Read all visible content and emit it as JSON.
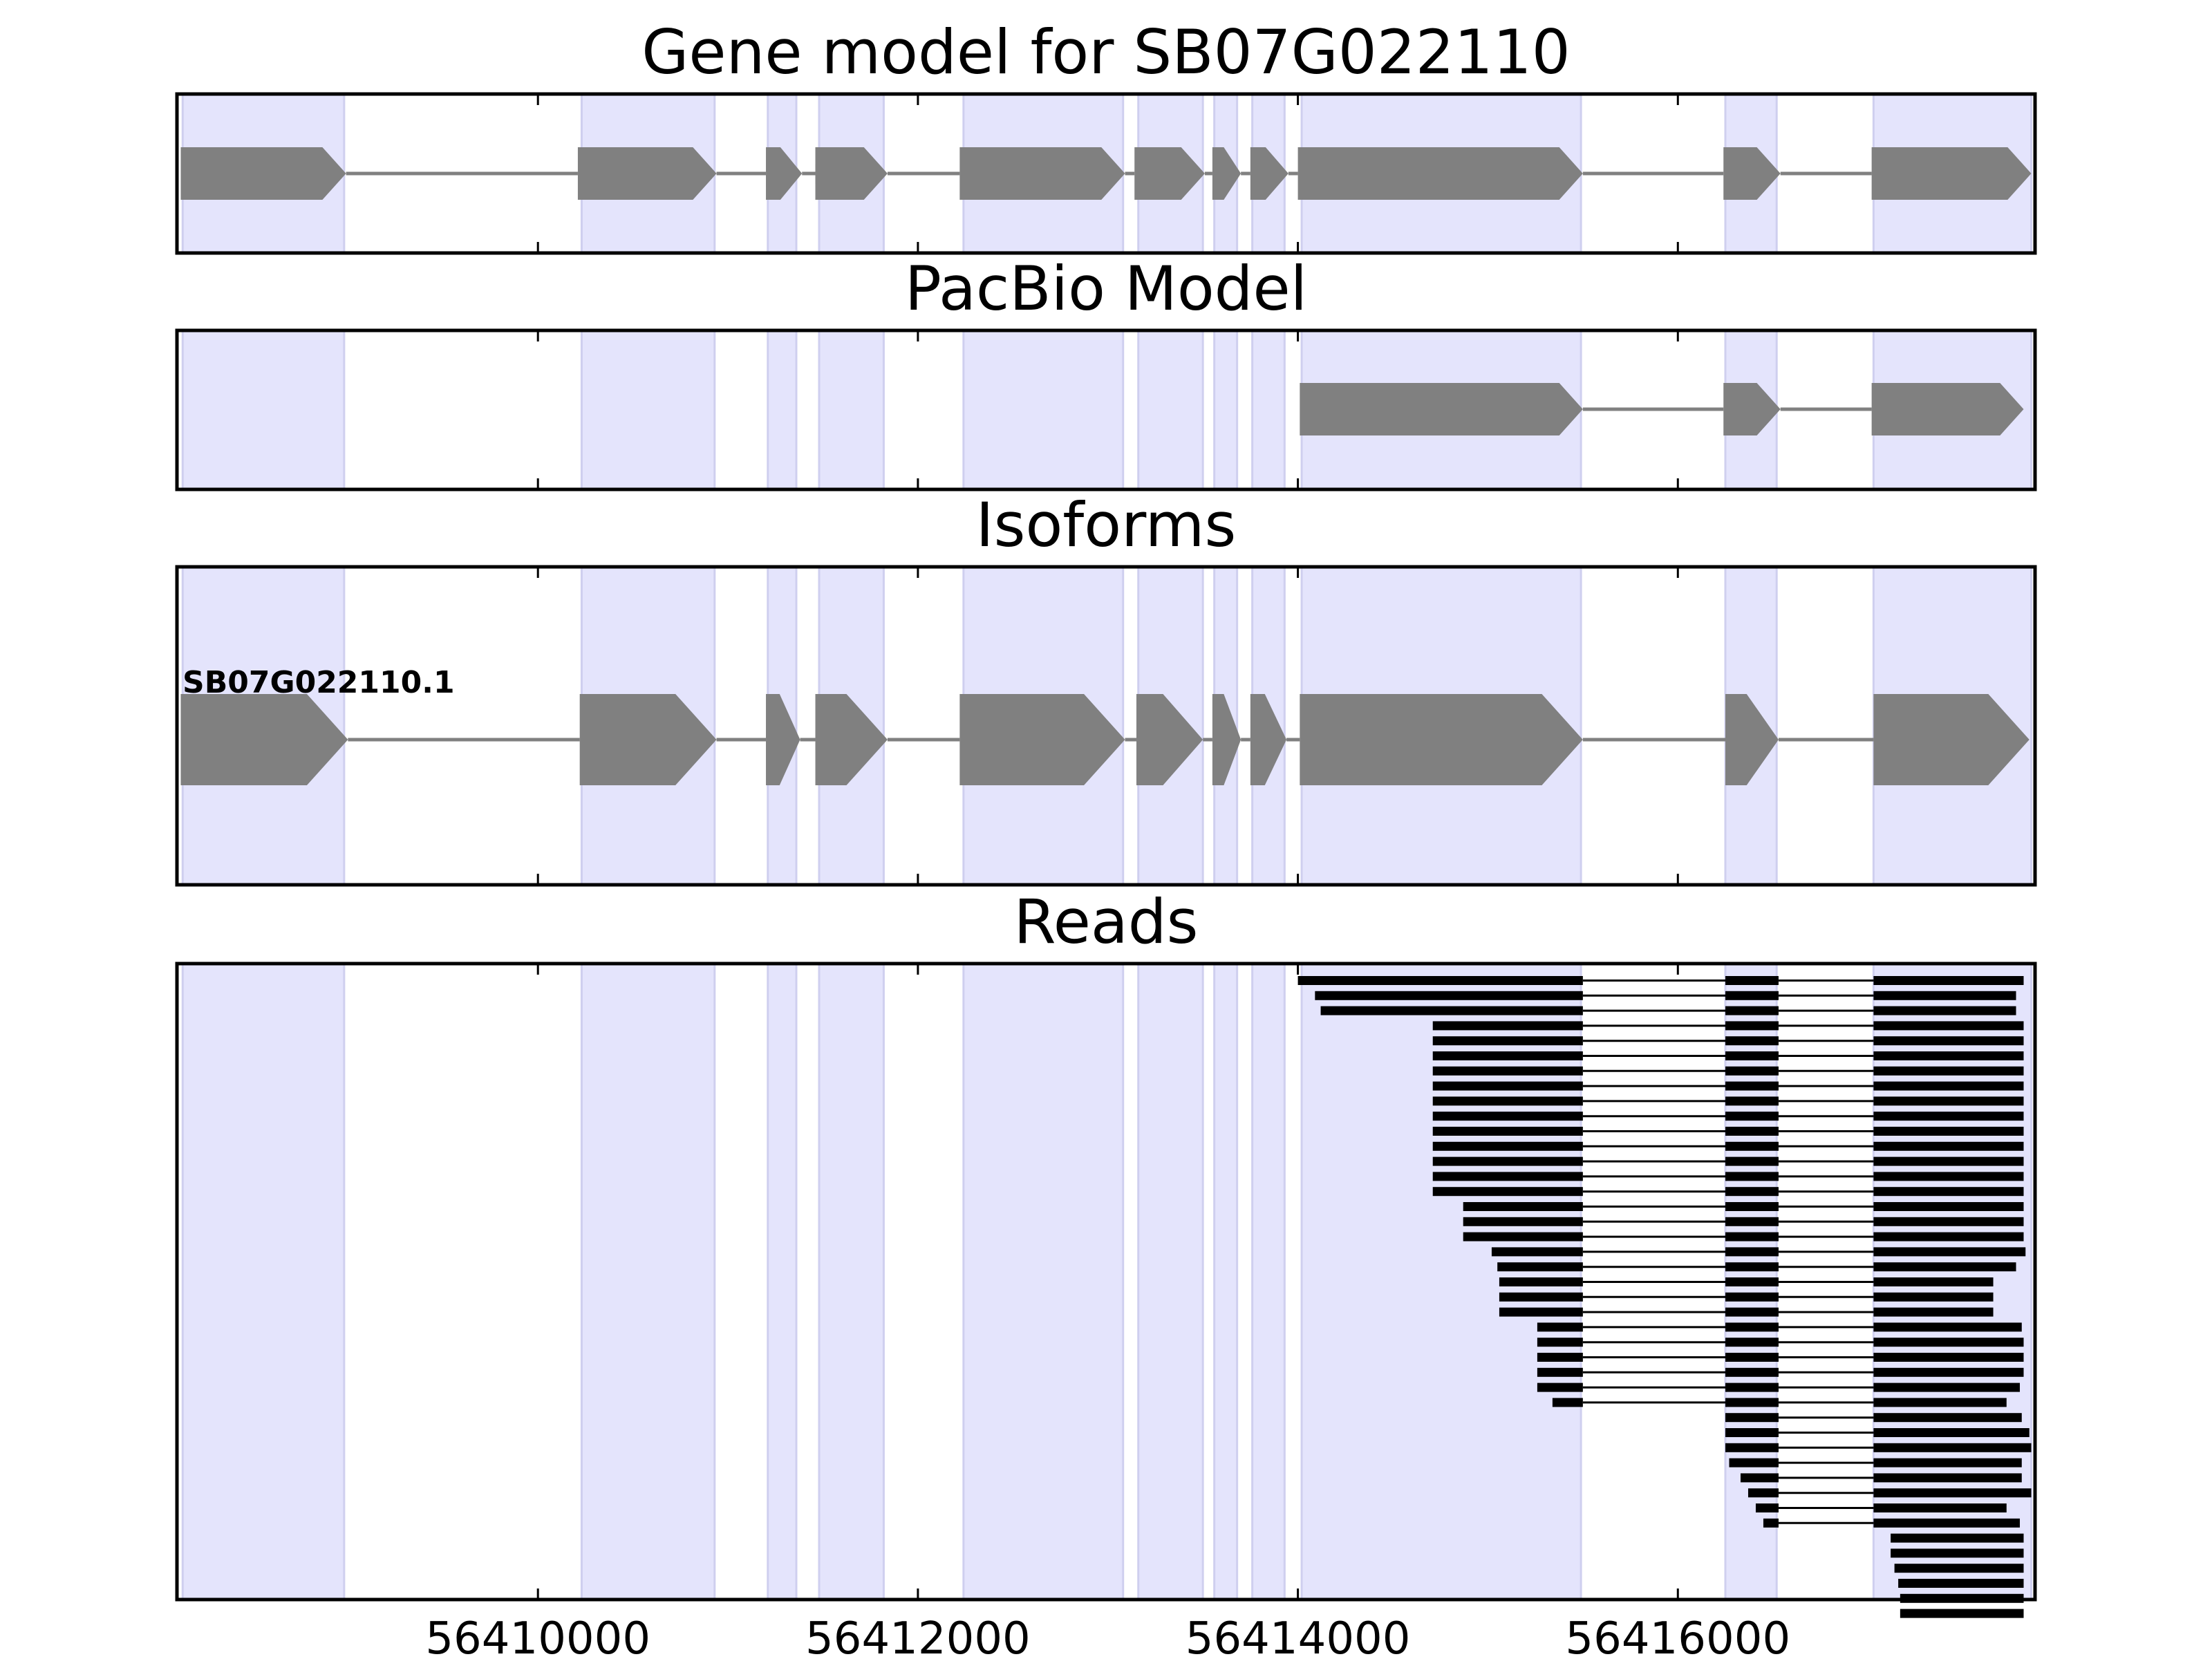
{
  "figure": {
    "panels": [
      {
        "id": "gene",
        "title": "Gene model for SB07G022110"
      },
      {
        "id": "pacbio",
        "title": "PacBio Model"
      },
      {
        "id": "isoforms",
        "title": "Isoforms",
        "isoform_label": "SB07G022110.1"
      },
      {
        "id": "reads",
        "title": "Reads"
      }
    ],
    "x_ticks": [
      "56410000",
      "56412000",
      "56414000",
      "56416000"
    ]
  },
  "colors": {
    "exon_band": "#e4e4fc",
    "exon_band_edge": "#cfcfef",
    "feature_fill": "#808080",
    "intron_line": "#808080",
    "read_fill": "#000000",
    "frame": "#000000"
  },
  "chart_data": {
    "type": "gene_structure",
    "x_unit": "genomic position (bp)",
    "x_range": [
      56408100,
      56417880
    ],
    "x_ticks": [
      56410000,
      56412000,
      56414000,
      56416000
    ],
    "exon_regions": [
      [
        56408130,
        56408980
      ],
      [
        56410230,
        56410930
      ],
      [
        56411210,
        56411360
      ],
      [
        56411480,
        56411820
      ],
      [
        56412240,
        56413080
      ],
      [
        56413160,
        56413500
      ],
      [
        56413560,
        56413680
      ],
      [
        56413760,
        56413930
      ],
      [
        56414020,
        56415490
      ],
      [
        56416250,
        56416520
      ],
      [
        56417030,
        56417860
      ]
    ],
    "gene_model": {
      "exons": [
        [
          56408120,
          56408990
        ],
        [
          56410210,
          56410940
        ],
        [
          56411200,
          56411390
        ],
        [
          56411460,
          56411840
        ],
        [
          56412220,
          56413090
        ],
        [
          56413140,
          56413510
        ],
        [
          56413550,
          56413700
        ],
        [
          56413750,
          56413950
        ],
        [
          56414000,
          56415500
        ],
        [
          56416240,
          56416540
        ],
        [
          56417020,
          56417860
        ]
      ]
    },
    "pacbio_model": {
      "exons": [
        [
          56414010,
          56415500
        ],
        [
          56416240,
          56416540
        ],
        [
          56417020,
          56417820
        ]
      ]
    },
    "isoforms": [
      {
        "name": "SB07G022110.1",
        "exons": [
          [
            56408120,
            56409000
          ],
          [
            56410220,
            56410940
          ],
          [
            56411200,
            56411380
          ],
          [
            56411460,
            56411840
          ],
          [
            56412220,
            56413090
          ],
          [
            56413150,
            56413500
          ],
          [
            56413550,
            56413700
          ],
          [
            56413750,
            56413940
          ],
          [
            56414010,
            56415500
          ],
          [
            56416250,
            56416530
          ],
          [
            56417030,
            56417850
          ]
        ]
      }
    ],
    "reads": {
      "junctions": [
        [
          56415500,
          56416250
        ],
        [
          56416530,
          56417030
        ]
      ],
      "start_end": [
        [
          56414000,
          56417820
        ],
        [
          56414090,
          56417780
        ],
        [
          56414120,
          56417780
        ],
        [
          56414710,
          56417820
        ],
        [
          56414710,
          56417820
        ],
        [
          56414710,
          56417820
        ],
        [
          56414710,
          56417820
        ],
        [
          56414710,
          56417820
        ],
        [
          56414710,
          56417820
        ],
        [
          56414710,
          56417820
        ],
        [
          56414710,
          56417820
        ],
        [
          56414710,
          56417820
        ],
        [
          56414710,
          56417820
        ],
        [
          56414710,
          56417820
        ],
        [
          56414710,
          56417820
        ],
        [
          56414870,
          56417820
        ],
        [
          56414870,
          56417820
        ],
        [
          56414870,
          56417820
        ],
        [
          56415020,
          56417830
        ],
        [
          56415050,
          56417780
        ],
        [
          56415060,
          56417660
        ],
        [
          56415060,
          56417660
        ],
        [
          56415060,
          56417660
        ],
        [
          56415260,
          56417810
        ],
        [
          56415260,
          56417820
        ],
        [
          56415260,
          56417820
        ],
        [
          56415260,
          56417820
        ],
        [
          56415260,
          56417800
        ],
        [
          56415340,
          56417730
        ],
        [
          56416250,
          56417810
        ],
        [
          56416250,
          56417850
        ],
        [
          56416250,
          56417860
        ],
        [
          56416270,
          56417810
        ],
        [
          56416330,
          56417810
        ],
        [
          56416370,
          56417860
        ],
        [
          56416410,
          56417730
        ],
        [
          56416450,
          56417800
        ],
        [
          56417120,
          56417820
        ],
        [
          56417120,
          56417820
        ],
        [
          56417140,
          56417820
        ],
        [
          56417160,
          56417820
        ],
        [
          56417170,
          56417820
        ],
        [
          56417170,
          56417820
        ]
      ]
    }
  }
}
